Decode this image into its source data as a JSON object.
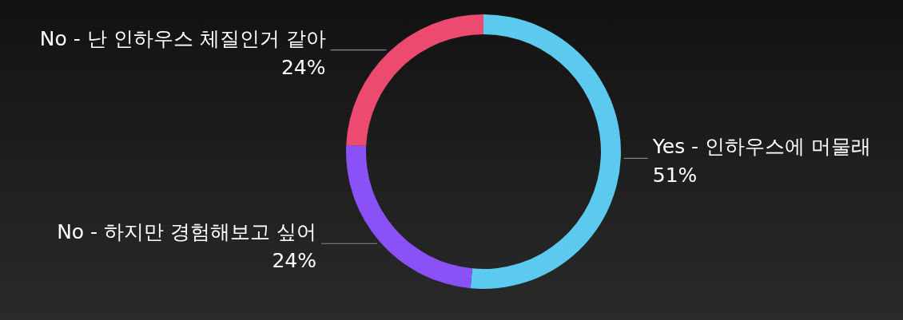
{
  "chart_data": {
    "type": "donut",
    "categories": [
      "Yes - 인하우스에 머물래",
      "No - 하지만 경험해보고 싶어",
      "No - 난 인하우스 체질인거 같아"
    ],
    "values": [
      51,
      24,
      24
    ],
    "colors": [
      "#5cc9ee",
      "#8a52f6",
      "#ec4a6e"
    ],
    "value_labels": [
      "51%",
      "24%",
      "24%"
    ]
  }
}
